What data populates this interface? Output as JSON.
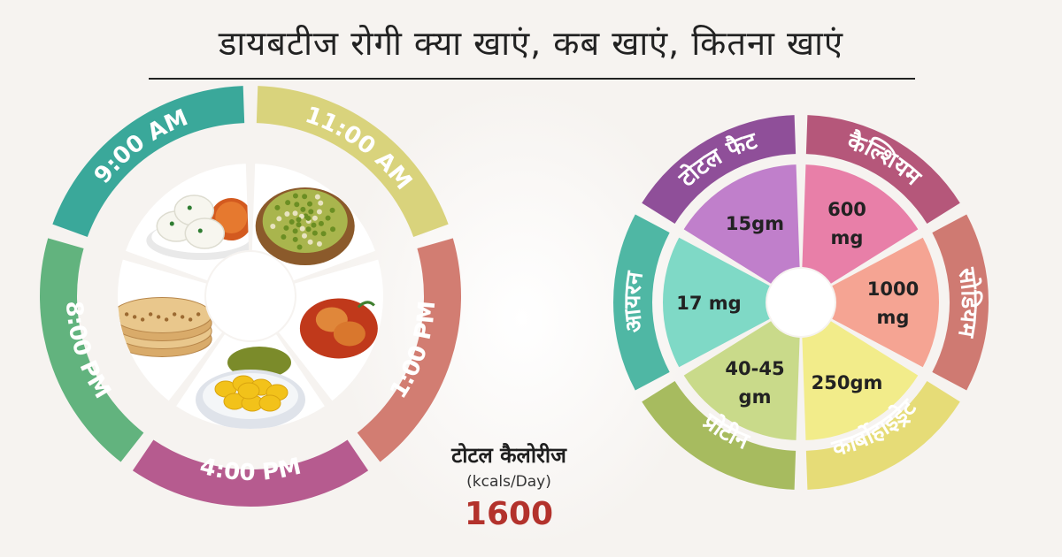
{
  "title": "डायबटीज रोगी क्या खाएं, कब खाएं, कितना खाएं",
  "meal_wheel": {
    "times": [
      {
        "label": "9:00 AM",
        "color": "#3aa89a"
      },
      {
        "label": "11:00 AM",
        "color": "#d9d37c"
      },
      {
        "label": "1:00 PM",
        "color": "#d27d72"
      },
      {
        "label": "4:00 PM",
        "color": "#b65b8f"
      },
      {
        "label": "8:00 PM",
        "color": "#62b37e"
      }
    ],
    "foods": [
      {
        "icon": "idli-sambar-icon"
      },
      {
        "icon": "sprouts-bowl-icon"
      },
      {
        "icon": "fish-curry-icon"
      },
      {
        "icon": "jackfruit-icon"
      },
      {
        "icon": "chapati-icon"
      }
    ]
  },
  "calories": {
    "label": "टोटल कैलोरीज",
    "unit": "(kcals/Day)",
    "value": "1600"
  },
  "nutrient_wheel": {
    "segments": [
      {
        "name": "कैल्शियम",
        "value": "600",
        "value2": "mg",
        "outer_color": "#b5577a",
        "inner_color": "#e87fa8"
      },
      {
        "name": "सोडियम",
        "value": "1000",
        "value2": "mg",
        "outer_color": "#cf7a72",
        "inner_color": "#f5a493"
      },
      {
        "name": "कार्बोहाइड्रेट",
        "value": "250gm",
        "value2": "",
        "outer_color": "#e6dc77",
        "inner_color": "#f2ec8a"
      },
      {
        "name": "प्रोटीन",
        "value": "40-45",
        "value2": "gm",
        "outer_color": "#a7bb5f",
        "inner_color": "#c9da8a"
      },
      {
        "name": "आयरन",
        "value": "17 mg",
        "value2": "",
        "outer_color": "#4fb7a4",
        "inner_color": "#7fd9c6"
      },
      {
        "name": "टोटल फैट",
        "value": "15gm",
        "value2": "",
        "outer_color": "#8f4f99",
        "inner_color": "#c07fcb"
      }
    ]
  }
}
